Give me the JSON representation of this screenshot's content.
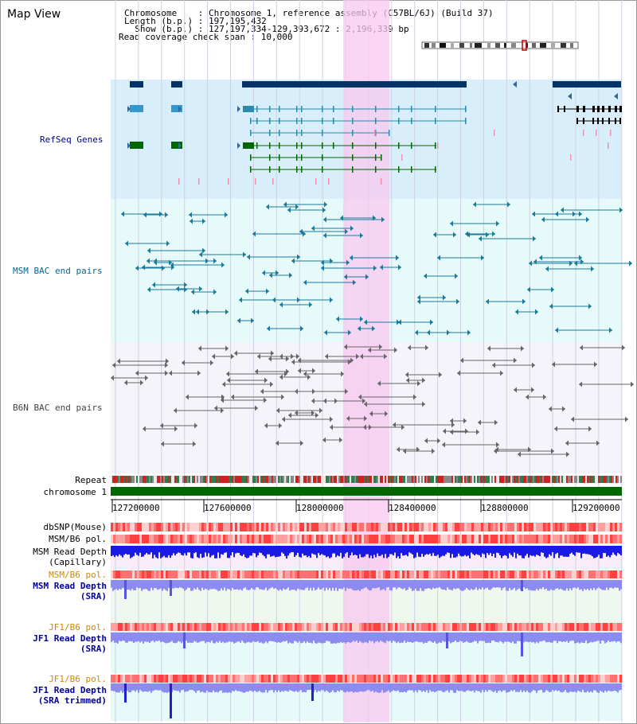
{
  "page": {
    "title": "Map View"
  },
  "header": {
    "lines": [
      "Chromosome    : Chromosome 1, reference assembly (C57BL/6J) (Build 37)",
      "Length (b.p.) : 197,195,432",
      "  Show (b.p.) : 127,197,334-129,393,672 : 2,196,339 bp",
      "Read coverage check span : 10,000"
    ]
  },
  "tracks": {
    "refseq": "RefSeq Genes",
    "msm_bac": "MSM BAC end pairs",
    "b6n_bac": "B6N BAC end pairs",
    "repeat": "Repeat",
    "chromosome": "chromosome 1",
    "dbsnp": "dbSNP(Mouse)",
    "msm_b6_pol_1": "MSM/B6 pol.",
    "msm_depth_cap_1": "MSM Read Depth",
    "msm_depth_cap_2": "(Capillary)",
    "msm_b6_pol_2": "MSM/B6 pol.",
    "msm_depth_sra_1": "MSM Read Depth",
    "msm_depth_sra_2": "(SRA)",
    "jf1_b6_pol_1": "JF1/B6 pol.",
    "jf1_depth_sra_1": "JF1 Read Depth",
    "jf1_depth_sra_2": "(SRA)",
    "jf1_b6_pol_2": "JF1/B6 pol.",
    "jf1_depth_trim_1": "JF1 Read Depth",
    "jf1_depth_trim_2": "(SRA trimmed)"
  },
  "axis": {
    "ticks": [
      "127200000",
      "127600000",
      "128000000",
      "128400000",
      "128800000",
      "129200000"
    ]
  },
  "colors": {
    "navy_label": "#000099",
    "orange_label": "#cc8800",
    "refseq_bg": "#d8eefa",
    "msm_bg": "#e6fafa",
    "b6n_bg": "#f4f4fa",
    "highlight": "#f8c8f0",
    "chrom_green": "#006600",
    "depth_blue": "#1a1ae6",
    "depth_light": "#8c8cf0"
  }
}
